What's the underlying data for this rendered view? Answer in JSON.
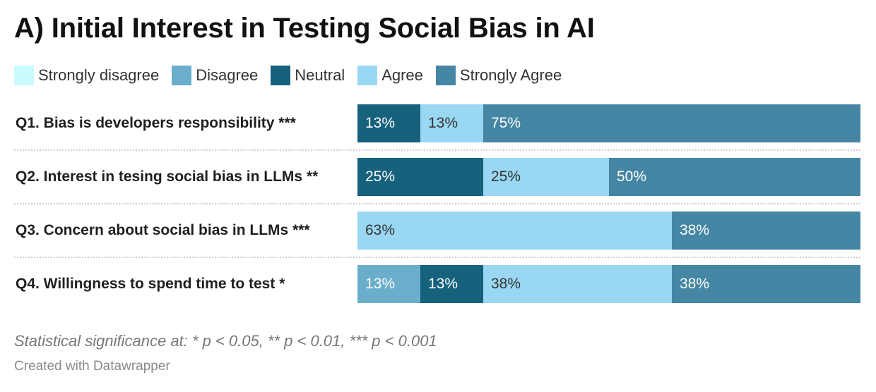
{
  "chart_data": {
    "type": "bar",
    "orientation": "horizontal",
    "stacked": true,
    "title": "A) Initial Interest in Testing Social Bias in AI",
    "notes": "Statistical significance at: * p < 0.05, ** p < 0.01, *** p < 0.001",
    "credit": "Created with Datawrapper",
    "legend": [
      {
        "label": "Strongly disagree",
        "color": "#c9fbff"
      },
      {
        "label": "Disagree",
        "color": "#6aaecb"
      },
      {
        "label": "Neutral",
        "color": "#16617c"
      },
      {
        "label": "Agree",
        "color": "#99d7f2"
      },
      {
        "label": "Strongly Agree",
        "color": "#4486a3"
      }
    ],
    "categories": [
      "Q1. Bias is developers responsibility ***",
      "Q2. Interest in tesing social bias in LLMs **",
      "Q3. Concern about social bias in LLMs ***",
      "Q4. Willingness to spend time to test *"
    ],
    "series": [
      {
        "name": "Strongly disagree",
        "values": [
          0,
          0,
          0,
          0
        ]
      },
      {
        "name": "Disagree",
        "values": [
          0,
          0,
          0,
          12.5
        ]
      },
      {
        "name": "Neutral",
        "values": [
          12.5,
          25,
          0,
          12.5
        ]
      },
      {
        "name": "Agree",
        "values": [
          12.5,
          25,
          62.5,
          37.5
        ]
      },
      {
        "name": "Strongly Agree",
        "values": [
          75,
          50,
          37.5,
          37.5
        ]
      }
    ],
    "value_labels": [
      [
        "",
        "",
        "13%",
        "13%",
        "75%"
      ],
      [
        "",
        "",
        "25%",
        "25%",
        "50%"
      ],
      [
        "",
        "",
        "",
        "63%",
        "38%"
      ],
      [
        "",
        "13%",
        "13%",
        "38%",
        "38%"
      ]
    ],
    "xlim": [
      0,
      100
    ]
  }
}
